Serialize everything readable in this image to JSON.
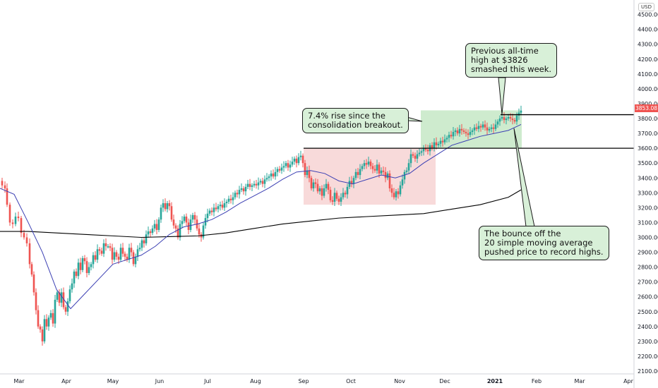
{
  "chart_data": {
    "type": "candlestick",
    "instrument_currency": "USD",
    "last_price": "3853.08",
    "x_axis_labels": [
      "Mar",
      "Apr",
      "May",
      "Jun",
      "Jul",
      "Aug",
      "Sep",
      "Oct",
      "Nov",
      "Dec",
      "2021",
      "Feb",
      "Mar",
      "Apr"
    ],
    "y_axis_labels": [
      "2100.00",
      "2200.00",
      "2300.00",
      "2400.00",
      "2500.00",
      "2600.00",
      "2700.00",
      "2800.00",
      "2900.00",
      "3000.00",
      "3100.00",
      "3200.00",
      "3300.00",
      "3400.00",
      "3500.00",
      "3600.00",
      "3700.00",
      "3800.00",
      "3900.00",
      "4000.00",
      "4100.00",
      "4200.00",
      "4300.00",
      "4400.00",
      "4500.00"
    ],
    "ylim": [
      2100,
      4560
    ],
    "close_path": [
      [
        0,
        3380
      ],
      [
        3,
        3350
      ],
      [
        7,
        3330
      ],
      [
        10,
        3220
      ],
      [
        14,
        3100
      ],
      [
        18,
        3090
      ],
      [
        22,
        3140
      ],
      [
        26,
        3130
      ],
      [
        30,
        3030
      ],
      [
        34,
        3000
      ],
      [
        38,
        2960
      ],
      [
        42,
        2820
      ],
      [
        45,
        2750
      ],
      [
        48,
        2630
      ],
      [
        51,
        2510
      ],
      [
        54,
        2400
      ],
      [
        57,
        2380
      ],
      [
        60,
        2300
      ],
      [
        63,
        2450
      ],
      [
        66,
        2400
      ],
      [
        69,
        2460
      ],
      [
        72,
        2490
      ],
      [
        75,
        2420
      ],
      [
        78,
        2580
      ],
      [
        81,
        2630
      ],
      [
        84,
        2560
      ],
      [
        87,
        2630
      ],
      [
        90,
        2530
      ],
      [
        93,
        2500
      ],
      [
        96,
        2570
      ],
      [
        99,
        2650
      ],
      [
        102,
        2690
      ],
      [
        105,
        2770
      ],
      [
        108,
        2740
      ],
      [
        111,
        2830
      ],
      [
        114,
        2780
      ],
      [
        117,
        2860
      ],
      [
        120,
        2840
      ],
      [
        123,
        2760
      ],
      [
        126,
        2800
      ],
      [
        129,
        2820
      ],
      [
        132,
        2880
      ],
      [
        135,
        2850
      ],
      [
        138,
        2920
      ],
      [
        141,
        2910
      ],
      [
        144,
        2890
      ],
      [
        147,
        2960
      ],
      [
        150,
        2940
      ],
      [
        153,
        2940
      ],
      [
        156,
        2930
      ],
      [
        159,
        2850
      ],
      [
        162,
        2900
      ],
      [
        165,
        2870
      ],
      [
        168,
        2850
      ],
      [
        171,
        2930
      ],
      [
        174,
        2890
      ],
      [
        177,
        2870
      ],
      [
        180,
        2850
      ],
      [
        183,
        2930
      ],
      [
        186,
        2900
      ],
      [
        189,
        2820
      ],
      [
        192,
        2870
      ],
      [
        195,
        2920
      ],
      [
        198,
        2930
      ],
      [
        201,
        2980
      ],
      [
        204,
        2960
      ],
      [
        207,
        3020
      ],
      [
        210,
        3040
      ],
      [
        213,
        3030
      ],
      [
        216,
        3060
      ],
      [
        219,
        3090
      ],
      [
        222,
        3050
      ],
      [
        225,
        3120
      ],
      [
        228,
        3200
      ],
      [
        231,
        3230
      ],
      [
        234,
        3190
      ],
      [
        237,
        3230
      ],
      [
        240,
        3210
      ],
      [
        243,
        3120
      ],
      [
        246,
        3080
      ],
      [
        249,
        3060
      ],
      [
        252,
        3000
      ],
      [
        255,
        3090
      ],
      [
        258,
        3110
      ],
      [
        261,
        3140
      ],
      [
        264,
        3100
      ],
      [
        267,
        3050
      ],
      [
        270,
        3120
      ],
      [
        273,
        3150
      ],
      [
        276,
        3120
      ],
      [
        279,
        3060
      ],
      [
        282,
        3020
      ],
      [
        285,
        3000
      ],
      [
        288,
        3080
      ],
      [
        291,
        3130
      ],
      [
        294,
        3160
      ],
      [
        297,
        3180
      ],
      [
        300,
        3170
      ],
      [
        303,
        3200
      ],
      [
        306,
        3190
      ],
      [
        309,
        3210
      ],
      [
        312,
        3220
      ],
      [
        315,
        3200
      ],
      [
        318,
        3230
      ],
      [
        321,
        3240
      ],
      [
        324,
        3260
      ],
      [
        327,
        3250
      ],
      [
        330,
        3270
      ],
      [
        333,
        3300
      ],
      [
        336,
        3290
      ],
      [
        339,
        3320
      ],
      [
        342,
        3330
      ],
      [
        345,
        3310
      ],
      [
        348,
        3340
      ],
      [
        351,
        3360
      ],
      [
        354,
        3340
      ],
      [
        357,
        3350
      ],
      [
        360,
        3360
      ],
      [
        363,
        3350
      ],
      [
        366,
        3370
      ],
      [
        369,
        3380
      ],
      [
        372,
        3360
      ],
      [
        375,
        3390
      ],
      [
        378,
        3400
      ],
      [
        381,
        3410
      ],
      [
        384,
        3430
      ],
      [
        387,
        3410
      ],
      [
        390,
        3440
      ],
      [
        393,
        3460
      ],
      [
        396,
        3450
      ],
      [
        399,
        3470
      ],
      [
        402,
        3480
      ],
      [
        405,
        3500
      ],
      [
        408,
        3470
      ],
      [
        411,
        3490
      ],
      [
        414,
        3510
      ],
      [
        417,
        3530
      ],
      [
        420,
        3500
      ],
      [
        423,
        3540
      ],
      [
        426,
        3550
      ],
      [
        429,
        3500
      ],
      [
        432,
        3420
      ],
      [
        435,
        3450
      ],
      [
        438,
        3400
      ],
      [
        441,
        3330
      ],
      [
        444,
        3370
      ],
      [
        447,
        3360
      ],
      [
        450,
        3310
      ],
      [
        453,
        3330
      ],
      [
        456,
        3280
      ],
      [
        459,
        3330
      ],
      [
        462,
        3360
      ],
      [
        465,
        3320
      ],
      [
        468,
        3250
      ],
      [
        471,
        3240
      ],
      [
        474,
        3300
      ],
      [
        477,
        3260
      ],
      [
        480,
        3240
      ],
      [
        483,
        3270
      ],
      [
        486,
        3300
      ],
      [
        489,
        3290
      ],
      [
        492,
        3340
      ],
      [
        495,
        3380
      ],
      [
        498,
        3360
      ],
      [
        501,
        3400
      ],
      [
        504,
        3440
      ],
      [
        507,
        3420
      ],
      [
        510,
        3460
      ],
      [
        513,
        3480
      ],
      [
        516,
        3500
      ],
      [
        519,
        3490
      ],
      [
        522,
        3510
      ],
      [
        525,
        3480
      ],
      [
        528,
        3460
      ],
      [
        531,
        3450
      ],
      [
        534,
        3490
      ],
      [
        537,
        3430
      ],
      [
        540,
        3450
      ],
      [
        543,
        3440
      ],
      [
        546,
        3400
      ],
      [
        549,
        3430
      ],
      [
        552,
        3330
      ],
      [
        555,
        3300
      ],
      [
        558,
        3270
      ],
      [
        561,
        3310
      ],
      [
        564,
        3290
      ],
      [
        567,
        3350
      ],
      [
        570,
        3390
      ],
      [
        573,
        3440
      ],
      [
        576,
        3450
      ],
      [
        579,
        3500
      ],
      [
        582,
        3560
      ],
      [
        585,
        3550
      ],
      [
        588,
        3530
      ],
      [
        591,
        3560
      ],
      [
        594,
        3570
      ],
      [
        597,
        3580
      ],
      [
        600,
        3600
      ],
      [
        603,
        3590
      ],
      [
        606,
        3580
      ],
      [
        609,
        3620
      ],
      [
        612,
        3600
      ],
      [
        615,
        3640
      ],
      [
        618,
        3620
      ],
      [
        621,
        3630
      ],
      [
        624,
        3650
      ],
      [
        627,
        3640
      ],
      [
        630,
        3660
      ],
      [
        633,
        3670
      ],
      [
        636,
        3690
      ],
      [
        639,
        3680
      ],
      [
        642,
        3710
      ],
      [
        645,
        3720
      ],
      [
        648,
        3700
      ],
      [
        651,
        3730
      ],
      [
        654,
        3720
      ],
      [
        657,
        3710
      ],
      [
        660,
        3700
      ],
      [
        663,
        3690
      ],
      [
        666,
        3710
      ],
      [
        669,
        3720
      ],
      [
        672,
        3740
      ],
      [
        675,
        3730
      ],
      [
        678,
        3750
      ],
      [
        681,
        3740
      ],
      [
        684,
        3760
      ],
      [
        687,
        3740
      ],
      [
        690,
        3720
      ],
      [
        693,
        3730
      ],
      [
        696,
        3740
      ],
      [
        699,
        3730
      ],
      [
        702,
        3760
      ],
      [
        705,
        3780
      ],
      [
        708,
        3800
      ],
      [
        711,
        3810
      ],
      [
        714,
        3790
      ],
      [
        717,
        3800
      ],
      [
        720,
        3810
      ],
      [
        723,
        3800
      ],
      [
        726,
        3790
      ],
      [
        729,
        3780
      ],
      [
        732,
        3820
      ],
      [
        735,
        3840
      ],
      [
        738,
        3853
      ]
    ],
    "support_levels": [
      {
        "price": 3826
      },
      {
        "price": 3600
      }
    ],
    "zones": [
      {
        "type": "consolidation",
        "color": "#f7d4d4",
        "x0": 430,
        "x1": 617,
        "y0": 3220,
        "y1": 3600
      },
      {
        "type": "breakout-rise",
        "color": "#c6e8c6",
        "x0": 596,
        "x1": 739,
        "y0": 3600,
        "y1": 3855
      }
    ],
    "sma20": [
      [
        0,
        3330
      ],
      [
        20,
        3290
      ],
      [
        40,
        3100
      ],
      [
        60,
        2900
      ],
      [
        80,
        2650
      ],
      [
        100,
        2520
      ],
      [
        120,
        2620
      ],
      [
        140,
        2720
      ],
      [
        160,
        2820
      ],
      [
        180,
        2850
      ],
      [
        200,
        2880
      ],
      [
        220,
        2940
      ],
      [
        240,
        3020
      ],
      [
        260,
        3070
      ],
      [
        280,
        3090
      ],
      [
        300,
        3120
      ],
      [
        320,
        3170
      ],
      [
        340,
        3230
      ],
      [
        360,
        3280
      ],
      [
        380,
        3330
      ],
      [
        400,
        3390
      ],
      [
        420,
        3440
      ],
      [
        440,
        3450
      ],
      [
        460,
        3430
      ],
      [
        480,
        3380
      ],
      [
        500,
        3360
      ],
      [
        520,
        3390
      ],
      [
        540,
        3420
      ],
      [
        560,
        3400
      ],
      [
        580,
        3430
      ],
      [
        600,
        3500
      ],
      [
        620,
        3560
      ],
      [
        640,
        3620
      ],
      [
        660,
        3650
      ],
      [
        680,
        3680
      ],
      [
        700,
        3700
      ],
      [
        720,
        3720
      ],
      [
        738,
        3760
      ]
    ],
    "sma200": [
      [
        0,
        3040
      ],
      [
        40,
        3040
      ],
      [
        80,
        3030
      ],
      [
        120,
        3020
      ],
      [
        160,
        3010
      ],
      [
        200,
        3000
      ],
      [
        240,
        3005
      ],
      [
        280,
        3010
      ],
      [
        320,
        3030
      ],
      [
        360,
        3060
      ],
      [
        400,
        3090
      ],
      [
        440,
        3110
      ],
      [
        480,
        3130
      ],
      [
        520,
        3140
      ],
      [
        560,
        3150
      ],
      [
        600,
        3160
      ],
      [
        640,
        3190
      ],
      [
        680,
        3220
      ],
      [
        720,
        3270
      ],
      [
        738,
        3320
      ]
    ],
    "colors": {
      "up": "#26a69a",
      "down": "#ef5350",
      "sma20": "#3b3fb3",
      "sma200": "#000000"
    }
  },
  "annotations": {
    "breakout": "7.4% rise since the\nconsolidation breakout.",
    "ath": "Previous all-time\nhigh at $3826\nsmashed this week.",
    "bounce": "The bounce off the\n20 simple moving average\npushed price to record highs."
  }
}
